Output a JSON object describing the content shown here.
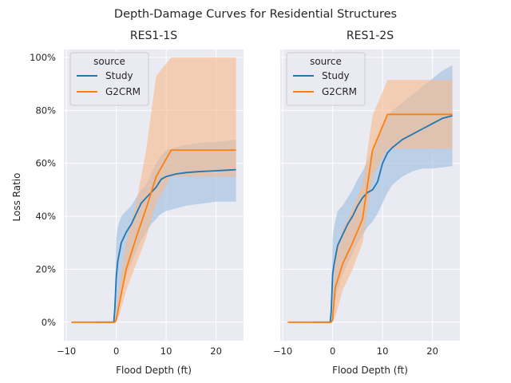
{
  "figure": {
    "title": "Depth-Damage Curves for Residential Structures",
    "ylabel": "Loss Ratio"
  },
  "colors": {
    "background": "#eaeaf2",
    "grid": "#ffffff",
    "study": "#1f77b4",
    "g2crm": "#ff7f0e",
    "study_band": "#a6c3e3",
    "g2crm_band": "#f6b98a"
  },
  "chart_data": [
    {
      "type": "line",
      "title": "RES1-1S",
      "xlabel": "Flood Depth (ft)",
      "ylabel": "Loss Ratio",
      "xlim": [
        -10.5,
        25.5
      ],
      "ylim": [
        -0.07,
        1.03
      ],
      "xticks": [
        -10,
        0,
        10,
        20
      ],
      "xtick_labels": [
        "−10",
        "0",
        "10",
        "20"
      ],
      "yticks": [
        0,
        0.2,
        0.4,
        0.6,
        0.8,
        1.0
      ],
      "ytick_labels": [
        "0%",
        "20%",
        "40%",
        "60%",
        "80%",
        "100%"
      ],
      "grid": true,
      "legend": {
        "title": "source",
        "placement": "top-left",
        "entries": [
          "Study",
          "G2CRM"
        ]
      },
      "series": [
        {
          "name": "Study",
          "x": [
            -4,
            -0.5,
            -0.3,
            0,
            0.3,
            1,
            2,
            3,
            4,
            5,
            6,
            7,
            8,
            9,
            10,
            12,
            14,
            16,
            18,
            20,
            22,
            24
          ],
          "y": [
            0,
            0,
            0.05,
            0.17,
            0.23,
            0.3,
            0.34,
            0.37,
            0.41,
            0.45,
            0.47,
            0.49,
            0.51,
            0.54,
            0.55,
            0.56,
            0.565,
            0.568,
            0.57,
            0.572,
            0.574,
            0.576
          ],
          "band_lower": [
            0,
            0,
            0,
            0.02,
            0.06,
            0.12,
            0.18,
            0.22,
            0.27,
            0.31,
            0.34,
            0.37,
            0.39,
            0.41,
            0.42,
            0.43,
            0.44,
            0.445,
            0.45,
            0.455,
            0.455,
            0.455
          ],
          "band_upper": [
            0,
            0,
            0.08,
            0.32,
            0.36,
            0.4,
            0.42,
            0.44,
            0.47,
            0.5,
            0.52,
            0.56,
            0.6,
            0.63,
            0.65,
            0.66,
            0.67,
            0.675,
            0.68,
            0.68,
            0.685,
            0.69
          ]
        },
        {
          "name": "G2CRM",
          "x": [
            -9,
            -0.3,
            0,
            0.5,
            2,
            4,
            6,
            8,
            11,
            24
          ],
          "y": [
            0,
            0,
            0.01,
            0.06,
            0.2,
            0.32,
            0.43,
            0.55,
            0.65,
            0.65
          ],
          "band_lower": [
            0,
            0,
            0,
            0.02,
            0.12,
            0.22,
            0.32,
            0.45,
            0.55,
            0.55
          ],
          "band_upper": [
            0,
            0,
            0.03,
            0.12,
            0.3,
            0.45,
            0.65,
            0.93,
            1.0,
            1.0
          ]
        }
      ]
    },
    {
      "type": "line",
      "title": "RES1-2S",
      "xlabel": "Flood Depth (ft)",
      "ylabel": "",
      "xlim": [
        -10.5,
        25.5
      ],
      "ylim": [
        -0.07,
        1.03
      ],
      "xticks": [
        -10,
        0,
        10,
        20
      ],
      "xtick_labels": [
        "−10",
        "0",
        "10",
        "20"
      ],
      "yticks": [
        0,
        0.2,
        0.4,
        0.6,
        0.8,
        1.0
      ],
      "ytick_labels": [],
      "grid": true,
      "legend": {
        "title": "source",
        "placement": "top-left",
        "entries": [
          "Study",
          "G2CRM"
        ]
      },
      "series": [
        {
          "name": "Study",
          "x": [
            -4,
            -0.5,
            -0.3,
            0,
            0.3,
            1,
            2,
            3,
            4,
            5,
            6,
            7,
            8,
            9,
            10,
            11,
            12,
            14,
            16,
            18,
            20,
            22,
            24
          ],
          "y": [
            0,
            0,
            0.04,
            0.18,
            0.22,
            0.29,
            0.33,
            0.37,
            0.4,
            0.44,
            0.47,
            0.49,
            0.5,
            0.53,
            0.6,
            0.64,
            0.66,
            0.69,
            0.71,
            0.73,
            0.75,
            0.77,
            0.78
          ],
          "band_lower": [
            0,
            0,
            0,
            0.03,
            0.07,
            0.12,
            0.18,
            0.22,
            0.26,
            0.3,
            0.33,
            0.36,
            0.38,
            0.41,
            0.45,
            0.49,
            0.52,
            0.55,
            0.57,
            0.58,
            0.58,
            0.585,
            0.59
          ],
          "band_upper": [
            0,
            0,
            0.07,
            0.32,
            0.36,
            0.42,
            0.44,
            0.47,
            0.5,
            0.54,
            0.57,
            0.61,
            0.65,
            0.69,
            0.74,
            0.78,
            0.8,
            0.83,
            0.86,
            0.89,
            0.92,
            0.95,
            0.97
          ]
        },
        {
          "name": "G2CRM",
          "x": [
            -9,
            -0.3,
            0,
            0.5,
            2,
            4,
            6,
            8,
            11,
            24
          ],
          "y": [
            0,
            0,
            0.01,
            0.13,
            0.22,
            0.3,
            0.39,
            0.65,
            0.785,
            0.785
          ],
          "band_lower": [
            0,
            0,
            0,
            0.02,
            0.12,
            0.2,
            0.3,
            0.55,
            0.655,
            0.655
          ],
          "band_upper": [
            0,
            0,
            0.03,
            0.25,
            0.35,
            0.43,
            0.52,
            0.78,
            0.915,
            0.915
          ]
        }
      ]
    }
  ]
}
